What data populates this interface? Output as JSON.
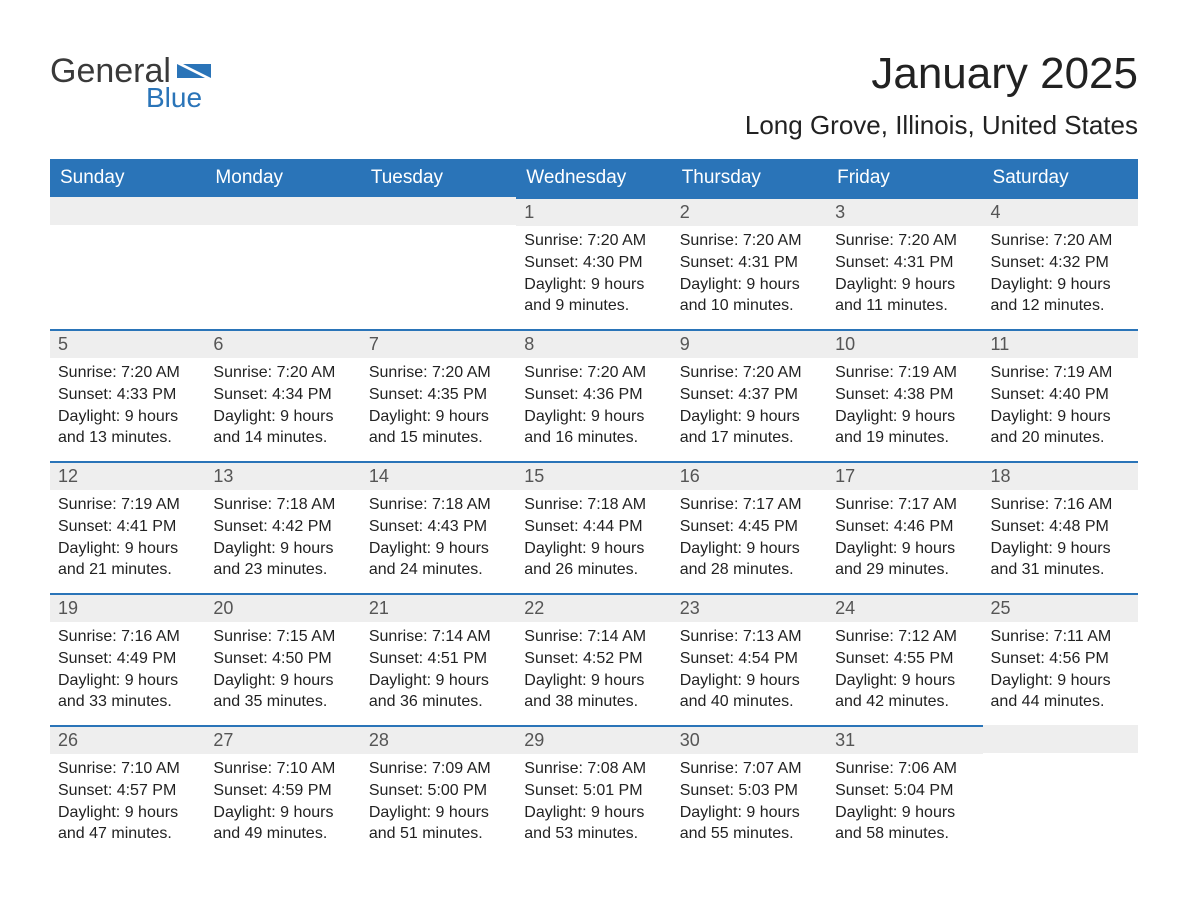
{
  "brand": {
    "word1": "General",
    "word2": "Blue"
  },
  "title": {
    "month": "January 2025",
    "location": "Long Grove, Illinois, United States"
  },
  "colors": {
    "header_bg": "#2a74b8",
    "header_text": "#ffffff",
    "daynum_bg": "#eeeeee",
    "daynum_border": "#2a74b8",
    "text": "#222222",
    "logo_blue": "#2a74b8",
    "logo_gray": "#3a3a3a"
  },
  "columns": [
    "Sunday",
    "Monday",
    "Tuesday",
    "Wednesday",
    "Thursday",
    "Friday",
    "Saturday"
  ],
  "weeks": [
    [
      {
        "empty": true
      },
      {
        "empty": true
      },
      {
        "empty": true
      },
      {
        "num": "1",
        "sunrise": "Sunrise: 7:20 AM",
        "sunset": "Sunset: 4:30 PM",
        "daylight1": "Daylight: 9 hours",
        "daylight2": "and 9 minutes."
      },
      {
        "num": "2",
        "sunrise": "Sunrise: 7:20 AM",
        "sunset": "Sunset: 4:31 PM",
        "daylight1": "Daylight: 9 hours",
        "daylight2": "and 10 minutes."
      },
      {
        "num": "3",
        "sunrise": "Sunrise: 7:20 AM",
        "sunset": "Sunset: 4:31 PM",
        "daylight1": "Daylight: 9 hours",
        "daylight2": "and 11 minutes."
      },
      {
        "num": "4",
        "sunrise": "Sunrise: 7:20 AM",
        "sunset": "Sunset: 4:32 PM",
        "daylight1": "Daylight: 9 hours",
        "daylight2": "and 12 minutes."
      }
    ],
    [
      {
        "num": "5",
        "sunrise": "Sunrise: 7:20 AM",
        "sunset": "Sunset: 4:33 PM",
        "daylight1": "Daylight: 9 hours",
        "daylight2": "and 13 minutes."
      },
      {
        "num": "6",
        "sunrise": "Sunrise: 7:20 AM",
        "sunset": "Sunset: 4:34 PM",
        "daylight1": "Daylight: 9 hours",
        "daylight2": "and 14 minutes."
      },
      {
        "num": "7",
        "sunrise": "Sunrise: 7:20 AM",
        "sunset": "Sunset: 4:35 PM",
        "daylight1": "Daylight: 9 hours",
        "daylight2": "and 15 minutes."
      },
      {
        "num": "8",
        "sunrise": "Sunrise: 7:20 AM",
        "sunset": "Sunset: 4:36 PM",
        "daylight1": "Daylight: 9 hours",
        "daylight2": "and 16 minutes."
      },
      {
        "num": "9",
        "sunrise": "Sunrise: 7:20 AM",
        "sunset": "Sunset: 4:37 PM",
        "daylight1": "Daylight: 9 hours",
        "daylight2": "and 17 minutes."
      },
      {
        "num": "10",
        "sunrise": "Sunrise: 7:19 AM",
        "sunset": "Sunset: 4:38 PM",
        "daylight1": "Daylight: 9 hours",
        "daylight2": "and 19 minutes."
      },
      {
        "num": "11",
        "sunrise": "Sunrise: 7:19 AM",
        "sunset": "Sunset: 4:40 PM",
        "daylight1": "Daylight: 9 hours",
        "daylight2": "and 20 minutes."
      }
    ],
    [
      {
        "num": "12",
        "sunrise": "Sunrise: 7:19 AM",
        "sunset": "Sunset: 4:41 PM",
        "daylight1": "Daylight: 9 hours",
        "daylight2": "and 21 minutes."
      },
      {
        "num": "13",
        "sunrise": "Sunrise: 7:18 AM",
        "sunset": "Sunset: 4:42 PM",
        "daylight1": "Daylight: 9 hours",
        "daylight2": "and 23 minutes."
      },
      {
        "num": "14",
        "sunrise": "Sunrise: 7:18 AM",
        "sunset": "Sunset: 4:43 PM",
        "daylight1": "Daylight: 9 hours",
        "daylight2": "and 24 minutes."
      },
      {
        "num": "15",
        "sunrise": "Sunrise: 7:18 AM",
        "sunset": "Sunset: 4:44 PM",
        "daylight1": "Daylight: 9 hours",
        "daylight2": "and 26 minutes."
      },
      {
        "num": "16",
        "sunrise": "Sunrise: 7:17 AM",
        "sunset": "Sunset: 4:45 PM",
        "daylight1": "Daylight: 9 hours",
        "daylight2": "and 28 minutes."
      },
      {
        "num": "17",
        "sunrise": "Sunrise: 7:17 AM",
        "sunset": "Sunset: 4:46 PM",
        "daylight1": "Daylight: 9 hours",
        "daylight2": "and 29 minutes."
      },
      {
        "num": "18",
        "sunrise": "Sunrise: 7:16 AM",
        "sunset": "Sunset: 4:48 PM",
        "daylight1": "Daylight: 9 hours",
        "daylight2": "and 31 minutes."
      }
    ],
    [
      {
        "num": "19",
        "sunrise": "Sunrise: 7:16 AM",
        "sunset": "Sunset: 4:49 PM",
        "daylight1": "Daylight: 9 hours",
        "daylight2": "and 33 minutes."
      },
      {
        "num": "20",
        "sunrise": "Sunrise: 7:15 AM",
        "sunset": "Sunset: 4:50 PM",
        "daylight1": "Daylight: 9 hours",
        "daylight2": "and 35 minutes."
      },
      {
        "num": "21",
        "sunrise": "Sunrise: 7:14 AM",
        "sunset": "Sunset: 4:51 PM",
        "daylight1": "Daylight: 9 hours",
        "daylight2": "and 36 minutes."
      },
      {
        "num": "22",
        "sunrise": "Sunrise: 7:14 AM",
        "sunset": "Sunset: 4:52 PM",
        "daylight1": "Daylight: 9 hours",
        "daylight2": "and 38 minutes."
      },
      {
        "num": "23",
        "sunrise": "Sunrise: 7:13 AM",
        "sunset": "Sunset: 4:54 PM",
        "daylight1": "Daylight: 9 hours",
        "daylight2": "and 40 minutes."
      },
      {
        "num": "24",
        "sunrise": "Sunrise: 7:12 AM",
        "sunset": "Sunset: 4:55 PM",
        "daylight1": "Daylight: 9 hours",
        "daylight2": "and 42 minutes."
      },
      {
        "num": "25",
        "sunrise": "Sunrise: 7:11 AM",
        "sunset": "Sunset: 4:56 PM",
        "daylight1": "Daylight: 9 hours",
        "daylight2": "and 44 minutes."
      }
    ],
    [
      {
        "num": "26",
        "sunrise": "Sunrise: 7:10 AM",
        "sunset": "Sunset: 4:57 PM",
        "daylight1": "Daylight: 9 hours",
        "daylight2": "and 47 minutes."
      },
      {
        "num": "27",
        "sunrise": "Sunrise: 7:10 AM",
        "sunset": "Sunset: 4:59 PM",
        "daylight1": "Daylight: 9 hours",
        "daylight2": "and 49 minutes."
      },
      {
        "num": "28",
        "sunrise": "Sunrise: 7:09 AM",
        "sunset": "Sunset: 5:00 PM",
        "daylight1": "Daylight: 9 hours",
        "daylight2": "and 51 minutes."
      },
      {
        "num": "29",
        "sunrise": "Sunrise: 7:08 AM",
        "sunset": "Sunset: 5:01 PM",
        "daylight1": "Daylight: 9 hours",
        "daylight2": "and 53 minutes."
      },
      {
        "num": "30",
        "sunrise": "Sunrise: 7:07 AM",
        "sunset": "Sunset: 5:03 PM",
        "daylight1": "Daylight: 9 hours",
        "daylight2": "and 55 minutes."
      },
      {
        "num": "31",
        "sunrise": "Sunrise: 7:06 AM",
        "sunset": "Sunset: 5:04 PM",
        "daylight1": "Daylight: 9 hours",
        "daylight2": "and 58 minutes."
      },
      {
        "empty": true
      }
    ]
  ]
}
